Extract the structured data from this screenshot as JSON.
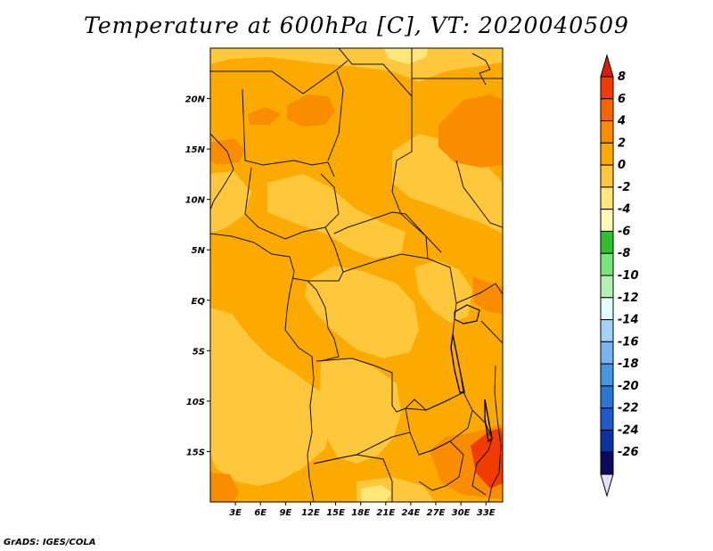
{
  "title": "Temperature at 600hPa [C], VT: 2020040509",
  "footer": "GrADS: IGES/COLA",
  "map": {
    "lon_range": [
      0,
      35
    ],
    "lat_range": [
      -20,
      25
    ],
    "background_color": "#fcaa00",
    "lat_ticks": [
      {
        "value": 20,
        "label": "20N"
      },
      {
        "value": 15,
        "label": "15N"
      },
      {
        "value": 10,
        "label": "10N"
      },
      {
        "value": 5,
        "label": "5N"
      },
      {
        "value": 0,
        "label": "EQ"
      },
      {
        "value": -5,
        "label": "5S"
      },
      {
        "value": -10,
        "label": "10S"
      },
      {
        "value": -15,
        "label": "15S"
      }
    ],
    "lon_ticks": [
      {
        "value": 3,
        "label": "3E"
      },
      {
        "value": 6,
        "label": "6E"
      },
      {
        "value": 9,
        "label": "9E"
      },
      {
        "value": 12,
        "label": "12E"
      },
      {
        "value": 15,
        "label": "15E"
      },
      {
        "value": 18,
        "label": "18E"
      },
      {
        "value": 21,
        "label": "21E"
      },
      {
        "value": 24,
        "label": "24E"
      },
      {
        "value": 27,
        "label": "27E"
      },
      {
        "value": 30,
        "label": "30E"
      },
      {
        "value": 33,
        "label": "33E"
      }
    ]
  },
  "colorbar": {
    "labels": [
      "8",
      "6",
      "4",
      "2",
      "0",
      "-2",
      "-4",
      "-6",
      "-8",
      "-10",
      "-12",
      "-14",
      "-16",
      "-18",
      "-20",
      "-22",
      "-24",
      "-26"
    ],
    "colors": [
      "#dc1e00",
      "#f03c00",
      "#fa6400",
      "#fa8c00",
      "#fcaa00",
      "#ffc83c",
      "#ffe678",
      "#fffab4",
      "#30c030",
      "#78e678",
      "#b4f0b4",
      "#e1ffff",
      "#a0d2fa",
      "#78b4f0",
      "#4696e6",
      "#2878d2",
      "#1e5ac8",
      "#0a32a0",
      "#0a0a5a",
      "#e1e1ff"
    ]
  }
}
